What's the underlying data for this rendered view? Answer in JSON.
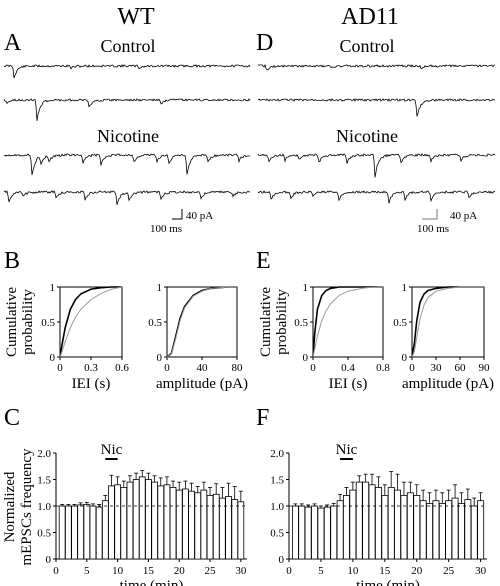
{
  "headers": {
    "wt": "WT",
    "ad11": "AD11"
  },
  "panels": {
    "a": "A",
    "b": "B",
    "c": "C",
    "d": "D",
    "e": "E",
    "f": "F"
  },
  "traces": {
    "control": "Control",
    "nicotine": "Nicotine"
  },
  "scalebar": {
    "current": "40 pA",
    "time": "100 ms"
  },
  "colors": {
    "line": "#000000",
    "ref": "#999999",
    "bar_fill": "#ffffff"
  },
  "chart_data": [
    {
      "id": "B-IEI-WT",
      "type": "line",
      "ylabel": "Cumulative probability",
      "xlabel": "IEI (s)",
      "xticks": [
        "0",
        "0.3",
        "0.6"
      ],
      "yticks": [
        "0",
        "0.5",
        "1"
      ],
      "xlim": [
        0,
        0.6
      ],
      "ylim": [
        0,
        1
      ],
      "series": [
        {
          "style": "black",
          "x": [
            0,
            0.02,
            0.05,
            0.1,
            0.15,
            0.2,
            0.3,
            0.4,
            0.5,
            0.6
          ],
          "y": [
            0,
            0.18,
            0.42,
            0.68,
            0.82,
            0.9,
            0.97,
            0.99,
            1.0,
            1.0
          ]
        },
        {
          "style": "gray",
          "x": [
            0,
            0.02,
            0.05,
            0.1,
            0.15,
            0.2,
            0.3,
            0.4,
            0.5,
            0.6
          ],
          "y": [
            0,
            0.08,
            0.22,
            0.42,
            0.57,
            0.68,
            0.82,
            0.91,
            0.97,
            1.0
          ]
        }
      ]
    },
    {
      "id": "B-amp-WT",
      "type": "line",
      "xlabel": "amplitude (pA)",
      "xticks": [
        "0",
        "40",
        "80"
      ],
      "yticks": [
        "0",
        "0.5",
        "1"
      ],
      "xlim": [
        0,
        80
      ],
      "ylim": [
        0,
        1
      ],
      "series": [
        {
          "style": "black",
          "x": [
            0,
            5,
            10,
            15,
            20,
            30,
            40,
            50,
            60,
            70,
            80
          ],
          "y": [
            0,
            0.05,
            0.3,
            0.55,
            0.72,
            0.88,
            0.95,
            0.98,
            0.99,
            1.0,
            1.0
          ]
        },
        {
          "style": "gray",
          "x": [
            0,
            5,
            10,
            15,
            20,
            30,
            40,
            50,
            60,
            70,
            80
          ],
          "y": [
            0,
            0.04,
            0.27,
            0.52,
            0.7,
            0.87,
            0.94,
            0.98,
            0.99,
            1.0,
            1.0
          ]
        }
      ]
    },
    {
      "id": "E-IEI-AD11",
      "type": "line",
      "ylabel": "Cumulative probability",
      "xlabel": "IEI (s)",
      "xticks": [
        "0",
        "0.4",
        "0.8"
      ],
      "yticks": [
        "0",
        "0.5",
        "1"
      ],
      "xlim": [
        0,
        0.8
      ],
      "ylim": [
        0,
        1
      ],
      "series": [
        {
          "style": "black",
          "x": [
            0,
            0.02,
            0.05,
            0.1,
            0.15,
            0.2,
            0.3,
            0.4,
            0.6,
            0.8
          ],
          "y": [
            0,
            0.35,
            0.68,
            0.88,
            0.95,
            0.98,
            1.0,
            1.0,
            1.0,
            1.0
          ]
        },
        {
          "style": "gray",
          "x": [
            0,
            0.02,
            0.05,
            0.1,
            0.15,
            0.2,
            0.3,
            0.4,
            0.6,
            0.8
          ],
          "y": [
            0,
            0.12,
            0.3,
            0.52,
            0.66,
            0.76,
            0.88,
            0.94,
            0.99,
            1.0
          ]
        }
      ]
    },
    {
      "id": "E-amp-AD11",
      "type": "line",
      "xlabel": "amplitude (pA)",
      "xticks": [
        "0",
        "30",
        "60",
        "90"
      ],
      "yticks": [
        "0",
        "0.5",
        "1"
      ],
      "xlim": [
        0,
        90
      ],
      "ylim": [
        0,
        1
      ],
      "series": [
        {
          "style": "black",
          "x": [
            0,
            3,
            6,
            10,
            15,
            20,
            30,
            45,
            60,
            90
          ],
          "y": [
            0,
            0.2,
            0.52,
            0.78,
            0.9,
            0.95,
            0.98,
            1.0,
            1.0,
            1.0
          ]
        },
        {
          "style": "gray",
          "x": [
            0,
            3,
            6,
            10,
            15,
            20,
            30,
            45,
            60,
            90
          ],
          "y": [
            0,
            0.08,
            0.28,
            0.55,
            0.74,
            0.85,
            0.94,
            0.98,
            1.0,
            1.0
          ]
        }
      ]
    },
    {
      "id": "C-WT",
      "type": "bar",
      "ylabel": "Normalized mEPSCs frequency",
      "xlabel": "time (min)",
      "annotation": "Nic",
      "drug_interval": [
        8,
        10
      ],
      "xticks": [
        "0",
        "5",
        "10",
        "15",
        "20",
        "25",
        "30"
      ],
      "yticks": [
        "0",
        "0.5",
        "1.0",
        "1.5",
        "2.0"
      ],
      "xlim": [
        0,
        31
      ],
      "ylim": [
        0,
        2.0
      ],
      "baseline": 1.0,
      "x": [
        1,
        2,
        3,
        4,
        5,
        6,
        7,
        8,
        9,
        10,
        11,
        12,
        13,
        14,
        15,
        16,
        17,
        18,
        19,
        20,
        21,
        22,
        23,
        24,
        25,
        26,
        27,
        28,
        29,
        30
      ],
      "values": [
        1.0,
        1.0,
        1.0,
        1.02,
        1.03,
        1.0,
        0.98,
        1.1,
        1.38,
        1.4,
        1.35,
        1.45,
        1.5,
        1.55,
        1.5,
        1.45,
        1.38,
        1.4,
        1.35,
        1.3,
        1.32,
        1.28,
        1.25,
        1.3,
        1.2,
        1.22,
        1.15,
        1.18,
        1.12,
        1.08
      ],
      "errors": [
        0.03,
        0.03,
        0.03,
        0.04,
        0.04,
        0.04,
        0.05,
        0.1,
        0.2,
        0.15,
        0.12,
        0.12,
        0.12,
        0.12,
        0.12,
        0.12,
        0.15,
        0.15,
        0.12,
        0.15,
        0.15,
        0.15,
        0.12,
        0.15,
        0.15,
        0.2,
        0.2,
        0.25,
        0.25,
        0.2
      ]
    },
    {
      "id": "F-AD11",
      "type": "bar",
      "xlabel": "time (min)",
      "annotation": "Nic",
      "drug_interval": [
        8,
        10
      ],
      "xticks": [
        "0",
        "5",
        "10",
        "15",
        "20",
        "25",
        "30"
      ],
      "yticks": [
        "0",
        "0.5",
        "1.0",
        "1.5",
        "2.0"
      ],
      "xlim": [
        0,
        31
      ],
      "ylim": [
        0,
        2.0
      ],
      "baseline": 1.0,
      "x": [
        1,
        2,
        3,
        4,
        5,
        6,
        7,
        8,
        9,
        10,
        11,
        12,
        13,
        14,
        15,
        16,
        17,
        18,
        19,
        20,
        21,
        22,
        23,
        24,
        25,
        26,
        27,
        28,
        29,
        30
      ],
      "values": [
        1.0,
        1.0,
        0.98,
        1.0,
        0.96,
        0.98,
        1.0,
        1.1,
        1.2,
        1.3,
        1.45,
        1.45,
        1.4,
        1.35,
        1.2,
        1.35,
        1.3,
        1.2,
        1.25,
        1.2,
        1.1,
        1.05,
        1.1,
        1.05,
        1.1,
        1.15,
        1.05,
        1.12,
        1.0,
        1.1
      ],
      "errors": [
        0.04,
        0.04,
        0.04,
        0.04,
        0.04,
        0.04,
        0.05,
        0.12,
        0.15,
        0.15,
        0.12,
        0.15,
        0.2,
        0.2,
        0.2,
        0.3,
        0.3,
        0.25,
        0.2,
        0.2,
        0.2,
        0.2,
        0.2,
        0.2,
        0.2,
        0.25,
        0.2,
        0.2,
        0.15,
        0.15
      ]
    }
  ]
}
